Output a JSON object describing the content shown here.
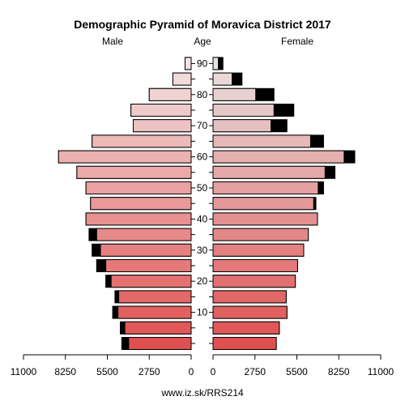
{
  "chart_data": {
    "type": "bar",
    "title": "Demographic Pyramid of Moravica District 2017",
    "left_label": "Male",
    "center_label": "Age",
    "right_label": "Female",
    "footer": "www.iz.sk/RRS214",
    "x_ticks_left": [
      "11000",
      "8250",
      "5500",
      "2750",
      "0"
    ],
    "x_ticks_right": [
      "0",
      "2750",
      "5500",
      "8250",
      "11000"
    ],
    "x_tick_values": [
      11000,
      8250,
      5500,
      2750,
      0
    ],
    "x_max": 11000,
    "age_ticks": [
      "10",
      "20",
      "30",
      "40",
      "50",
      "60",
      "70",
      "80",
      "90"
    ],
    "age_groups": [
      "0-4",
      "5-9",
      "10-14",
      "15-19",
      "20-24",
      "25-29",
      "30-34",
      "35-39",
      "40-44",
      "45-49",
      "50-54",
      "55-59",
      "60-64",
      "65-69",
      "70-74",
      "75-79",
      "80-84",
      "85-89",
      "90+"
    ],
    "male_total": [
      4550,
      4650,
      5150,
      5000,
      5600,
      6200,
      6500,
      6700,
      6900,
      6600,
      6900,
      7500,
      8700,
      6500,
      3800,
      3950,
      2750,
      1200,
      400
    ],
    "male_black": [
      450,
      300,
      350,
      250,
      350,
      600,
      550,
      500,
      0,
      0,
      0,
      0,
      0,
      0,
      0,
      0,
      0,
      0,
      0
    ],
    "female_total": [
      4150,
      4350,
      4850,
      4800,
      5400,
      5550,
      5950,
      6250,
      6850,
      6750,
      7250,
      8000,
      9300,
      7250,
      4850,
      5300,
      4000,
      1900,
      650
    ],
    "female_black": [
      0,
      0,
      0,
      0,
      0,
      0,
      0,
      0,
      0,
      150,
      350,
      650,
      700,
      850,
      1050,
      1300,
      1200,
      650,
      300
    ],
    "colors": {
      "bottom": "#e05050",
      "top_male": "#f2e2e2",
      "top_female": "#e8e0e0",
      "surplus": "#000000",
      "stroke": "#000000"
    }
  }
}
